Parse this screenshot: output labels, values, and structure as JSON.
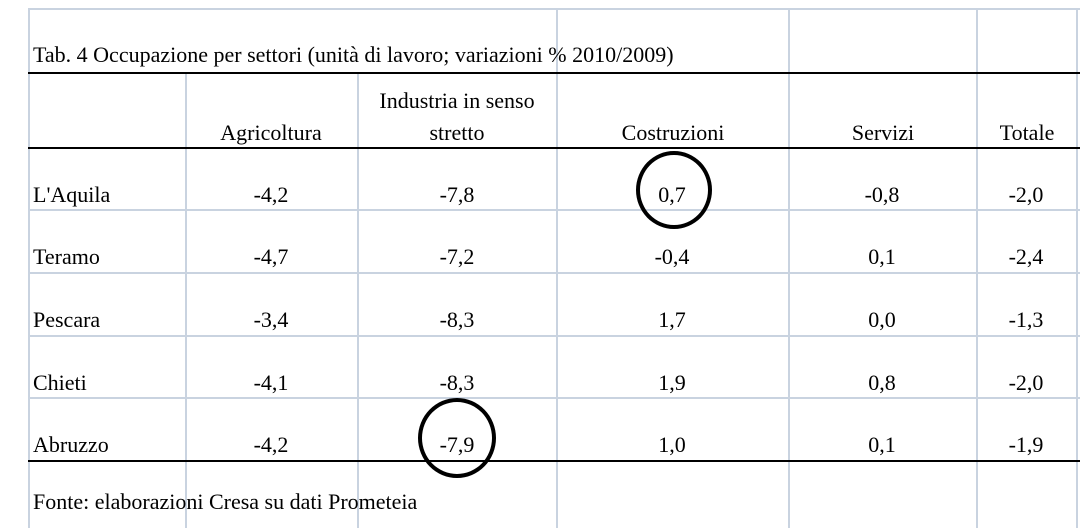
{
  "title": "Tab. 4 Occupazione per settori (unità di lavoro; variazioni % 2010/2009)",
  "headers": {
    "agricoltura": "Agricoltura",
    "industria_line1": "Industria in senso",
    "industria_line2": "stretto",
    "costruzioni": "Costruzioni",
    "servizi": "Servizi",
    "totale": "Totale"
  },
  "rows": [
    {
      "label": "L'Aquila",
      "agricoltura": "-4,2",
      "industria": "-7,8",
      "costruzioni": "0,7",
      "servizi": "-0,8",
      "totale": "-2,0"
    },
    {
      "label": "Teramo",
      "agricoltura": "-4,7",
      "industria": "-7,2",
      "costruzioni": "-0,4",
      "servizi": "0,1",
      "totale": "-2,4"
    },
    {
      "label": "Pescara",
      "agricoltura": "-3,4",
      "industria": "-8,3",
      "costruzioni": "1,7",
      "servizi": "0,0",
      "totale": "-1,3"
    },
    {
      "label": "Chieti",
      "agricoltura": "-4,1",
      "industria": "-8,3",
      "costruzioni": "1,9",
      "servizi": "0,8",
      "totale": "-2,0"
    },
    {
      "label": "Abruzzo",
      "agricoltura": "-4,2",
      "industria": "-7,9",
      "costruzioni": "1,0",
      "servizi": "0,1",
      "totale": "-1,9"
    }
  ],
  "source": "Fonte: elaborazioni Cresa su dati Prometeia"
}
